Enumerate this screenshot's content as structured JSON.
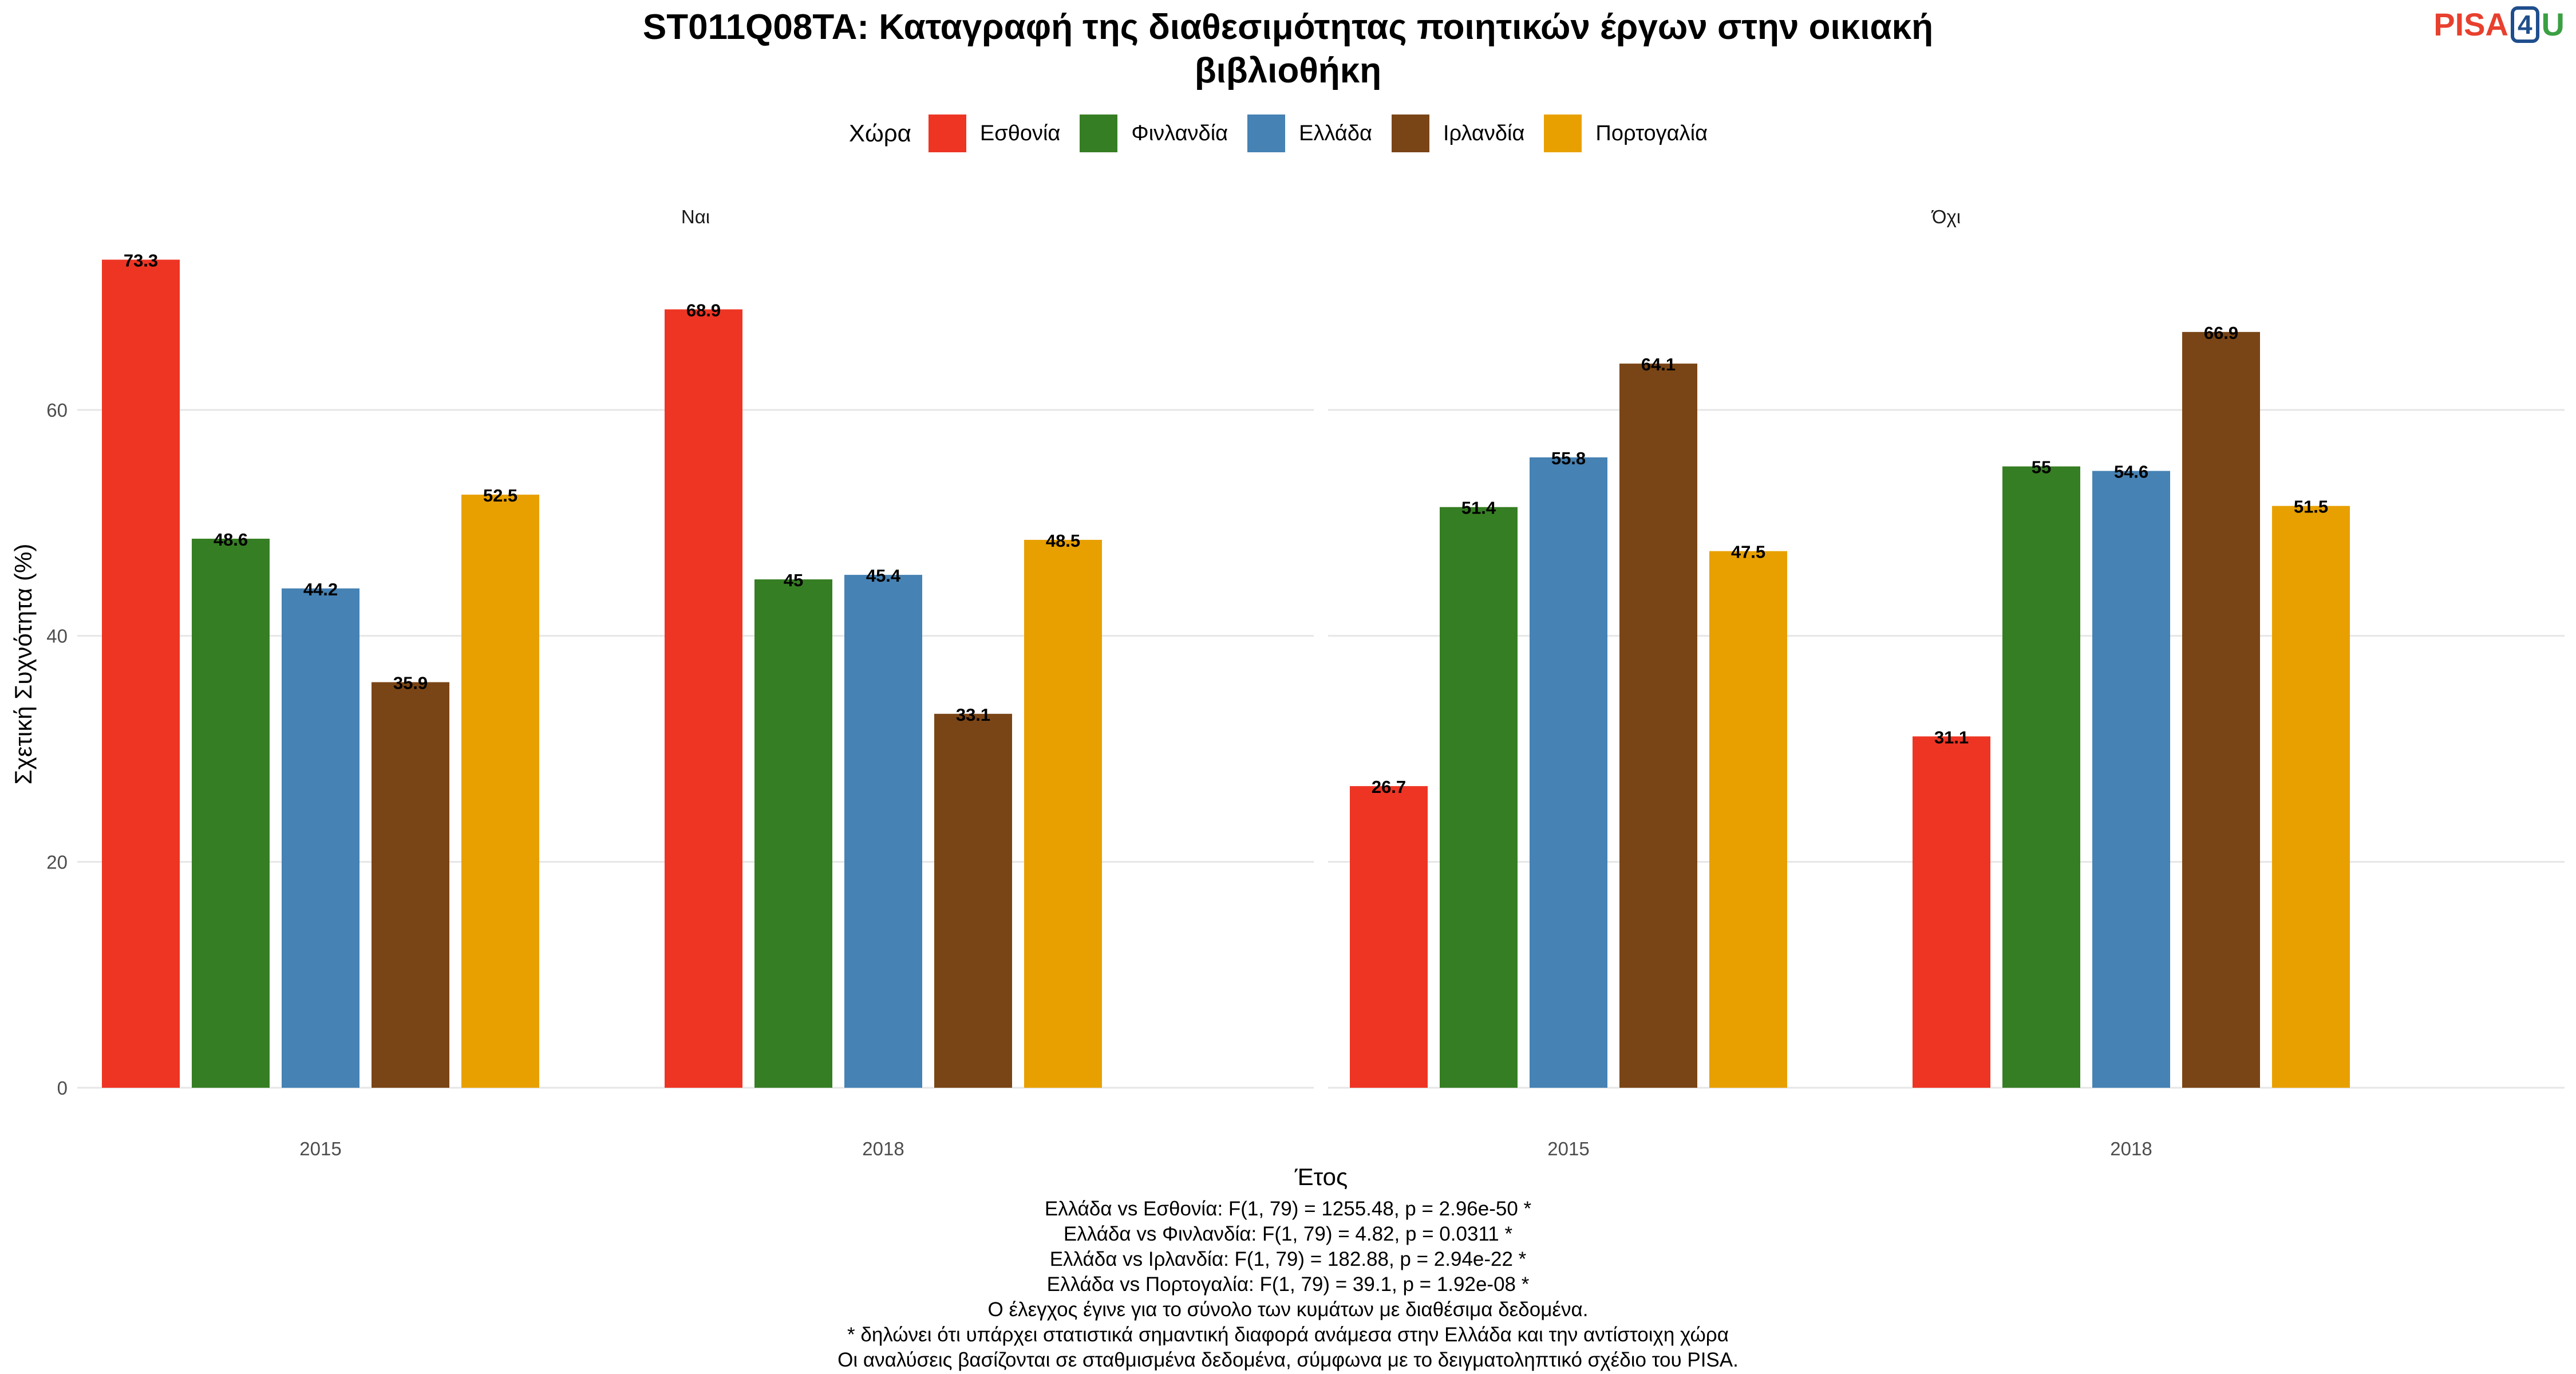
{
  "title_lines": [
    "ST011Q08TA: Καταγραφή της διαθεσιμότητας ποιητικών έργων στην οικιακή",
    "βιβλιοθήκη"
  ],
  "logo": {
    "pisa": "PISA",
    "four": "4",
    "u": "U"
  },
  "legend": {
    "title": "Χώρα",
    "items": [
      {
        "label": "Εσθονία",
        "color": "#ee3524"
      },
      {
        "label": "Φινλανδία",
        "color": "#367e23"
      },
      {
        "label": "Ελλάδα",
        "color": "#4682b4"
      },
      {
        "label": "Ιρλανδία",
        "color": "#7a4516"
      },
      {
        "label": "Πορτογαλία",
        "color": "#e8a000"
      }
    ]
  },
  "footer_lines": [
    "Ελλάδα vs Εσθονία: F(1, 79) = 1255.48, p = 2.96e-50 *",
    "Ελλάδα vs Φινλανδία: F(1, 79) = 4.82, p = 0.0311 *",
    "Ελλάδα vs Ιρλανδία: F(1, 79) = 182.88, p = 2.94e-22 *",
    "Ελλάδα vs Πορτογαλία: F(1, 79) = 39.1, p = 1.92e-08 *",
    "Ο έλεγχος έγινε για το σύνολο των κυμάτων με διαθέσιμα δεδομένα.",
    "* δηλώνει ότι υπάρχει στατιστικά σημαντική διαφορά ανάμεσα στην Ελλάδα και την αντίστοιχη χώρα",
    "Οι αναλύσεις βασίζονται σε σταθμισμένα δεδομένα, σύμφωνα με το δειγματοληπτικό σχέδιο του PISA."
  ],
  "chart_data": {
    "type": "bar",
    "xlabel": "Έτος",
    "ylabel": "Σχετική Συχνότητα (%)",
    "ylim": [
      0,
      75
    ],
    "yticks": [
      0,
      20,
      40,
      60
    ],
    "grid": true,
    "legend_position": "top",
    "categories": [
      "2015",
      "2018"
    ],
    "panels": [
      {
        "label": "Ναι",
        "series": [
          {
            "name": "Εσθονία",
            "values": [
              73.3,
              68.9
            ]
          },
          {
            "name": "Φινλανδία",
            "values": [
              48.6,
              45
            ]
          },
          {
            "name": "Ελλάδα",
            "values": [
              44.2,
              45.4
            ]
          },
          {
            "name": "Ιρλανδία",
            "values": [
              35.9,
              33.1
            ]
          },
          {
            "name": "Πορτογαλία",
            "values": [
              52.5,
              48.5
            ]
          }
        ]
      },
      {
        "label": "Όχι",
        "series": [
          {
            "name": "Εσθονία",
            "values": [
              26.7,
              31.1
            ]
          },
          {
            "name": "Φινλανδία",
            "values": [
              51.4,
              55
            ]
          },
          {
            "name": "Ελλάδα",
            "values": [
              55.8,
              54.6
            ]
          },
          {
            "name": "Ιρλανδία",
            "values": [
              64.1,
              66.9
            ]
          },
          {
            "name": "Πορτογαλία",
            "values": [
              47.5,
              51.5
            ]
          }
        ]
      }
    ]
  }
}
